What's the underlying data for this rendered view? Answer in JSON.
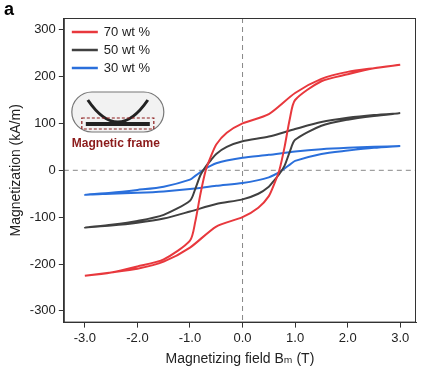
{
  "chart_data": {
    "type": "line",
    "panel": "a",
    "xlabel": "Magnetizing field Bₘ (T)",
    "ylabel": "Magnetization (kA/m)",
    "annotations": [
      "Magnetic frame"
    ],
    "x": [
      3,
      2.5,
      2,
      1.5,
      1,
      0.5,
      0,
      -0.3,
      -0.5,
      -0.6,
      -0.7,
      -0.8,
      -0.9,
      -1,
      -1.5,
      -2,
      -2.5,
      -3,
      -2.5,
      -2,
      -1.5,
      -1,
      -0.5,
      0,
      0.3,
      0.5,
      0.6,
      0.7,
      0.8,
      0.9,
      1,
      1.5,
      2,
      2.5,
      3
    ],
    "series": [
      {
        "name": "70 wt %",
        "color": "#e8383d",
        "values": [
          225,
          218,
          210,
          195,
          165,
          120,
          100,
          80,
          55,
          30,
          0,
          -50,
          -110,
          -150,
          -190,
          -205,
          -218,
          -225,
          -218,
          -210,
          -195,
          -165,
          -120,
          -100,
          -80,
          -55,
          -30,
          0,
          50,
          110,
          150,
          190,
          205,
          218,
          225
        ]
      },
      {
        "name": "50 wt %",
        "color": "#404040",
        "values": [
          122,
          118,
          112,
          103,
          88,
          72,
          62,
          50,
          35,
          22,
          8,
          -10,
          -40,
          -65,
          -95,
          -108,
          -116,
          -122,
          -118,
          -112,
          -103,
          -88,
          -72,
          -62,
          -50,
          -35,
          -22,
          -8,
          10,
          40,
          65,
          95,
          108,
          116,
          122
        ]
      },
      {
        "name": "30 wt %",
        "color": "#2a6fdb",
        "values": [
          52,
          50,
          48,
          45,
          40,
          33,
          27,
          21,
          15,
          10,
          4,
          -4,
          -12,
          -20,
          -35,
          -42,
          -48,
          -52,
          -50,
          -48,
          -45,
          -40,
          -33,
          -27,
          -21,
          -15,
          -10,
          -4,
          4,
          12,
          20,
          35,
          42,
          48,
          52
        ]
      }
    ],
    "xlim": [
      -3.4,
      3.3
    ],
    "xticks": [
      {
        "value": -3,
        "label": "-3.0"
      },
      {
        "value": -2,
        "label": "-2.0"
      },
      {
        "value": -1,
        "label": "-1.0"
      },
      {
        "value": 0,
        "label": "0.0"
      },
      {
        "value": 1,
        "label": "1.0"
      },
      {
        "value": 2,
        "label": "2.0"
      },
      {
        "value": 3,
        "label": "3.0"
      }
    ],
    "ylim": [
      -325,
      325
    ],
    "yticks": [
      -300,
      -200,
      -100,
      0,
      100,
      200,
      300
    ],
    "grid": false,
    "legend": "upper left"
  }
}
